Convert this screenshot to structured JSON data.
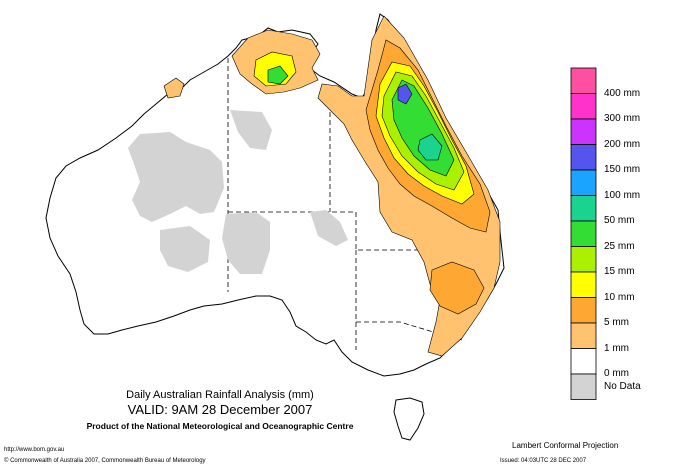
{
  "map_title": "Daily Australian Rainfall Analysis (mm)",
  "valid_line": "VALID: 9AM 28 December 2007",
  "product_line": "Product of the National Meteorological and Oceanographic Centre",
  "projection": "Lambert Conformal Projection",
  "footer_url": "http://www.bom.gov.au",
  "footer_copyright": "© Commonwealth of Australia 2007, Commonwealth Bureau of Meteorology",
  "footer_issued": "Issued: 04:03UTC 28 DEC 2007",
  "legend": [
    {
      "label": "",
      "color": "#ff4fa0"
    },
    {
      "label": "400 mm",
      "color": "#ff33cc"
    },
    {
      "label": "300 mm",
      "color": "#cc33ff"
    },
    {
      "label": "200 mm",
      "color": "#5555ee"
    },
    {
      "label": "150 mm",
      "color": "#1aa3ff"
    },
    {
      "label": "100 mm",
      "color": "#19d38f"
    },
    {
      "label": "50 mm",
      "color": "#33dd33"
    },
    {
      "label": "25 mm",
      "color": "#aaf000"
    },
    {
      "label": "15 mm",
      "color": "#ffff00"
    },
    {
      "label": "10 mm",
      "color": "#ffa733"
    },
    {
      "label": "5 mm",
      "color": "#ffc26e"
    },
    {
      "label": "1 mm",
      "color": "#ffffff"
    },
    {
      "label": "0 mm",
      "color": "#d3d3d3"
    },
    {
      "label": "No Data",
      "color": ""
    }
  ]
}
